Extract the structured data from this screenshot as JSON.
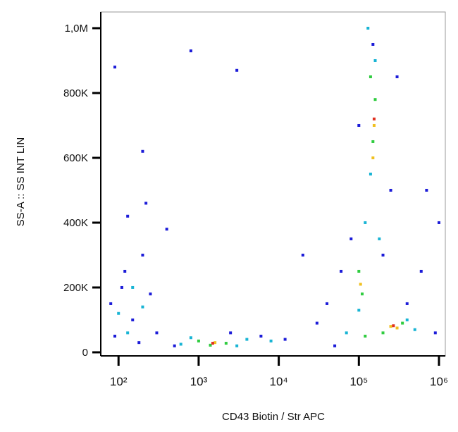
{
  "chart_data": {
    "type": "scatter",
    "x_label": "CD43 Biotin / Str APC",
    "y_label": "SS-A :: SS INT LIN",
    "x_log": true,
    "xlim": [
      60,
      1200000
    ],
    "xticks": [
      {
        "value": 100,
        "label": "10²"
      },
      {
        "value": 1000,
        "label": "10³"
      },
      {
        "value": 10000,
        "label": "10⁴"
      },
      {
        "value": 100000,
        "label": "10⁵"
      },
      {
        "value": 1000000,
        "label": "10⁶"
      }
    ],
    "ylim": [
      -11000,
      1050000
    ],
    "yticks": [
      0,
      {
        "value": 200000,
        "label": "200K"
      },
      {
        "value": 400000,
        "label": "400K"
      },
      {
        "value": 600000,
        "label": "600K"
      },
      {
        "value": 800000,
        "label": "800K"
      },
      {
        "value": 1000000,
        "label": "1,0M"
      }
    ],
    "series": [
      {
        "color": "#1c1cd8",
        "x": [
          80,
          120,
          200,
          90,
          150,
          250,
          300,
          400,
          110,
          180,
          500,
          2500,
          6000,
          12000,
          30000,
          40000,
          60000,
          80000,
          200000,
          400000,
          600000,
          150000,
          250000,
          100000,
          300000,
          700000,
          90,
          200,
          800,
          3000,
          50000,
          900000,
          1000000,
          130,
          220,
          20000
        ],
        "y": [
          150000,
          250000,
          300000,
          50000,
          100000,
          180000,
          60000,
          380000,
          200000,
          30000,
          20000,
          60000,
          50000,
          40000,
          90000,
          150000,
          250000,
          350000,
          300000,
          150000,
          250000,
          950000,
          500000,
          700000,
          850000,
          500000,
          880000,
          620000,
          930000,
          870000,
          20000,
          60000,
          400000,
          420000,
          460000,
          300000
        ]
      },
      {
        "color": "#18b4d4",
        "x": [
          100,
          150,
          200,
          130,
          800,
          4000,
          8000,
          120000,
          140000,
          160000,
          130000,
          70000,
          400000,
          100000,
          180000,
          500000,
          600,
          3000
        ],
        "y": [
          120000,
          200000,
          140000,
          60000,
          45000,
          40000,
          35000,
          400000,
          550000,
          900000,
          1000000,
          60000,
          100000,
          130000,
          350000,
          70000,
          25000,
          20000
        ]
      },
      {
        "color": "#30cc40",
        "x": [
          1000,
          2200,
          100000,
          110000,
          150000,
          160000,
          140000,
          120000,
          350000,
          200000,
          1400
        ],
        "y": [
          35000,
          28000,
          250000,
          180000,
          650000,
          780000,
          850000,
          50000,
          90000,
          60000,
          22000
        ]
      },
      {
        "color": "#f0c020",
        "x": [
          1600,
          155000,
          150000,
          105000,
          250000,
          300000
        ],
        "y": [
          30000,
          700000,
          600000,
          210000,
          80000,
          75000
        ]
      },
      {
        "color": "#e03020",
        "x": [
          1500,
          155000,
          270000
        ],
        "y": [
          28000,
          720000,
          82000
        ]
      }
    ]
  }
}
